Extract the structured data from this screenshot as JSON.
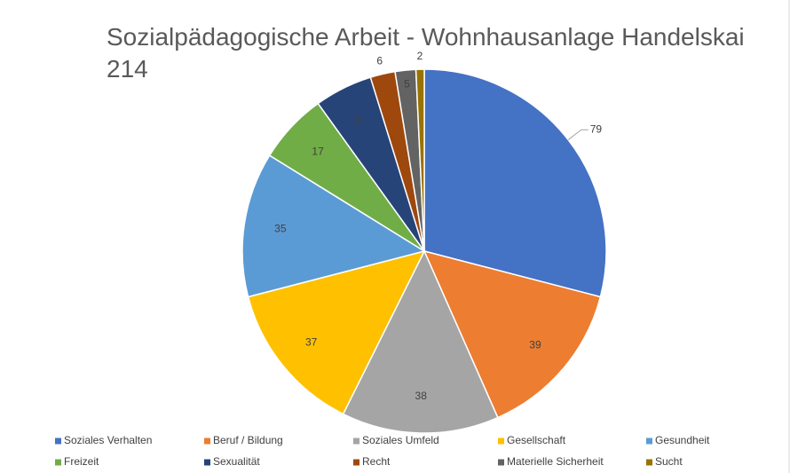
{
  "chart_data": {
    "type": "pie",
    "title": "Sozialpädagogische Arbeit - Wohnhausanlage Handelskai 214",
    "categories": [
      "Soziales Verhalten",
      "Beruf / Bildung",
      "Soziales Umfeld",
      "Gesellschaft",
      "Gesundheit",
      "Freizeit",
      "Sexualität",
      "Recht",
      "Materielle Sicherheit",
      "Sucht"
    ],
    "values": [
      79,
      39,
      38,
      37,
      35,
      17,
      14,
      6,
      5,
      2
    ],
    "colors": [
      "#4472c4",
      "#ed7d31",
      "#a5a5a5",
      "#ffc000",
      "#5b9bd5",
      "#70ad47",
      "#264478",
      "#9e480e",
      "#636363",
      "#997300"
    ],
    "legend": "bottom"
  }
}
